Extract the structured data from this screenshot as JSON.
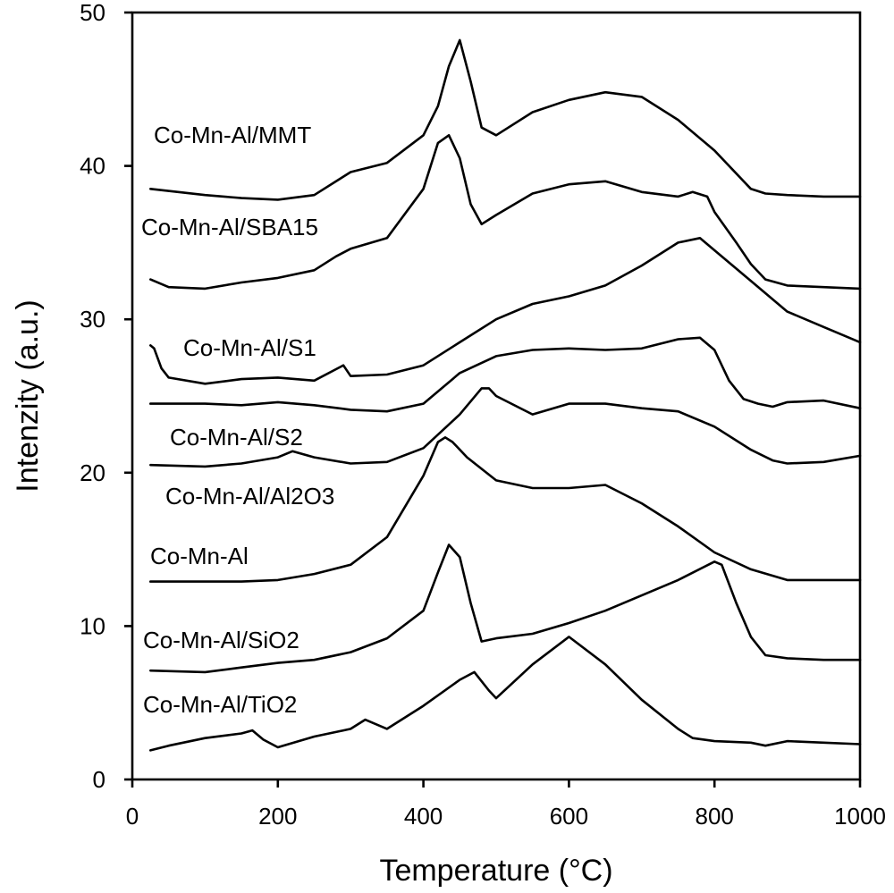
{
  "chart_data": {
    "type": "line",
    "xlabel": "Temperature (°C)",
    "ylabel": "Intenzity (a.u.)",
    "xlim": [
      0,
      1000
    ],
    "ylim": [
      0,
      50
    ],
    "xticks": [
      "0",
      "200",
      "400",
      "600",
      "800",
      "1000"
    ],
    "yticks": [
      "0",
      "10",
      "20",
      "30",
      "40",
      "50"
    ],
    "grid": false,
    "legend": "inline labels next to curves",
    "series": [
      {
        "name": "Co-Mn-Al/MMT",
        "x": [
          25,
          100,
          150,
          200,
          250,
          300,
          350,
          400,
          420,
          435,
          450,
          465,
          480,
          500,
          550,
          600,
          650,
          700,
          750,
          800,
          850,
          870,
          900,
          950,
          1000
        ],
        "y": [
          38.5,
          38.1,
          37.9,
          37.8,
          38.1,
          39.6,
          40.2,
          42.0,
          43.9,
          46.5,
          48.2,
          45.5,
          42.5,
          42.0,
          43.5,
          44.3,
          44.8,
          44.5,
          43.0,
          41.0,
          38.5,
          38.2,
          38.1,
          38.0,
          38.0
        ]
      },
      {
        "name": "Co-Mn-Al/SBA15",
        "x": [
          25,
          50,
          100,
          150,
          200,
          250,
          280,
          300,
          350,
          400,
          420,
          435,
          450,
          465,
          480,
          500,
          550,
          600,
          650,
          700,
          750,
          770,
          790,
          800,
          830,
          850,
          870,
          900,
          950,
          1000
        ],
        "y": [
          32.6,
          32.1,
          32.0,
          32.4,
          32.7,
          33.2,
          34.1,
          34.6,
          35.3,
          38.5,
          41.5,
          42.0,
          40.5,
          37.5,
          36.2,
          36.8,
          38.2,
          38.8,
          39.0,
          38.3,
          38.0,
          38.3,
          38.0,
          37.0,
          35.0,
          33.6,
          32.6,
          32.2,
          32.1,
          32.0
        ]
      },
      {
        "name": "Co-Mn-Al/S1",
        "x": [
          25,
          30,
          40,
          50,
          100,
          150,
          200,
          250,
          290,
          300,
          350,
          400,
          450,
          500,
          550,
          600,
          650,
          700,
          750,
          780,
          800,
          850,
          900,
          950,
          1000
        ],
        "y": [
          28.3,
          28.1,
          26.8,
          26.2,
          25.8,
          26.1,
          26.2,
          26.0,
          27.0,
          26.3,
          26.4,
          27.0,
          28.5,
          30.0,
          31.0,
          31.5,
          32.2,
          33.5,
          35.0,
          35.3,
          34.5,
          32.5,
          30.5,
          29.5,
          28.5
        ]
      },
      {
        "name": "Co-Mn-Al/S2",
        "x": [
          25,
          100,
          150,
          200,
          250,
          300,
          350,
          400,
          450,
          500,
          550,
          600,
          650,
          700,
          750,
          780,
          800,
          820,
          840,
          860,
          880,
          900,
          950,
          1000
        ],
        "y": [
          24.5,
          24.5,
          24.4,
          24.6,
          24.4,
          24.1,
          24.0,
          24.5,
          26.5,
          27.6,
          28.0,
          28.1,
          28.0,
          28.1,
          28.7,
          28.8,
          28.0,
          26.0,
          24.8,
          24.5,
          24.3,
          24.6,
          24.7,
          24.2
        ]
      },
      {
        "name": "Co-Mn-Al/Al2O3",
        "x": [
          25,
          100,
          150,
          200,
          220,
          250,
          300,
          350,
          400,
          450,
          480,
          490,
          500,
          550,
          600,
          650,
          700,
          750,
          800,
          850,
          880,
          900,
          950,
          1000
        ],
        "y": [
          20.5,
          20.4,
          20.6,
          21.0,
          21.4,
          21.0,
          20.6,
          20.7,
          21.6,
          23.8,
          25.5,
          25.5,
          25.0,
          23.8,
          24.5,
          24.5,
          24.2,
          24.0,
          23.0,
          21.5,
          20.8,
          20.6,
          20.7,
          21.1
        ]
      },
      {
        "name": "Co-Mn-Al",
        "x": [
          25,
          100,
          150,
          200,
          250,
          300,
          350,
          400,
          420,
          430,
          440,
          460,
          500,
          550,
          600,
          650,
          700,
          750,
          800,
          850,
          900,
          950,
          1000
        ],
        "y": [
          12.9,
          12.9,
          12.9,
          13.0,
          13.4,
          14.0,
          15.8,
          19.8,
          22.0,
          22.3,
          22.0,
          21.0,
          19.5,
          19.0,
          19.0,
          19.2,
          18.0,
          16.5,
          14.8,
          13.7,
          13.0,
          13.0,
          13.0
        ]
      },
      {
        "name": "Co-Mn-Al/SiO2",
        "x": [
          25,
          100,
          150,
          200,
          250,
          300,
          350,
          400,
          420,
          435,
          450,
          465,
          480,
          500,
          550,
          600,
          650,
          700,
          750,
          800,
          810,
          830,
          850,
          870,
          900,
          950,
          1000
        ],
        "y": [
          7.1,
          7.0,
          7.3,
          7.6,
          7.8,
          8.3,
          9.2,
          11.0,
          13.5,
          15.3,
          14.5,
          11.5,
          9.0,
          9.2,
          9.5,
          10.2,
          11.0,
          12.0,
          13.0,
          14.2,
          14.0,
          11.5,
          9.3,
          8.1,
          7.9,
          7.8,
          7.8
        ]
      },
      {
        "name": "Co-Mn-Al/TiO2",
        "x": [
          25,
          50,
          100,
          150,
          165,
          180,
          200,
          250,
          300,
          320,
          350,
          400,
          450,
          470,
          490,
          500,
          550,
          600,
          650,
          700,
          750,
          770,
          800,
          850,
          870,
          900,
          950,
          1000
        ],
        "y": [
          1.9,
          2.2,
          2.7,
          3.0,
          3.2,
          2.6,
          2.1,
          2.8,
          3.3,
          3.9,
          3.3,
          4.8,
          6.5,
          7.0,
          5.8,
          5.3,
          7.5,
          9.3,
          7.5,
          5.2,
          3.3,
          2.7,
          2.5,
          2.4,
          2.2,
          2.5,
          2.4,
          2.3
        ]
      }
    ],
    "annotations": [
      {
        "text": "Co-Mn-Al/MMT",
        "series": "Co-Mn-Al/MMT"
      },
      {
        "text": "Co-Mn-Al/SBA15",
        "series": "Co-Mn-Al/SBA15"
      },
      {
        "text": "Co-Mn-Al/S1",
        "series": "Co-Mn-Al/S1"
      },
      {
        "text": "Co-Mn-Al/S2",
        "series": "Co-Mn-Al/S2"
      },
      {
        "text": "Co-Mn-Al/Al2O3",
        "series": "Co-Mn-Al/Al2O3"
      },
      {
        "text": "Co-Mn-Al",
        "series": "Co-Mn-Al"
      },
      {
        "text": "Co-Mn-Al/SiO2",
        "series": "Co-Mn-Al/SiO2"
      },
      {
        "text": "Co-Mn-Al/TiO2",
        "series": "Co-Mn-Al/TiO2"
      }
    ],
    "colors": {
      "line": "#000000",
      "background": "#ffffff"
    }
  }
}
